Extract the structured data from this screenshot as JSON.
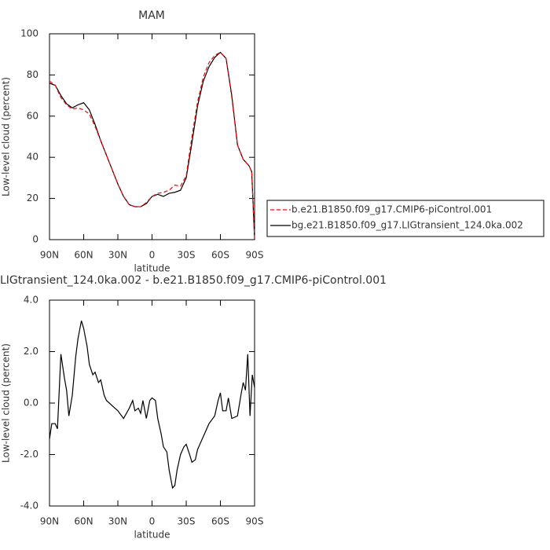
{
  "chart_data": [
    {
      "type": "line",
      "title": "MAM",
      "x_label": "latitude",
      "y_label": "Low-level cloud (percent)",
      "x": [
        90,
        85,
        80,
        75,
        70,
        65,
        60,
        55,
        50,
        45,
        40,
        35,
        30,
        25,
        20,
        15,
        10,
        5,
        0,
        -5,
        -10,
        -15,
        -20,
        -25,
        -30,
        -35,
        -40,
        -45,
        -50,
        -55,
        -60,
        -65,
        -70,
        -75,
        -80,
        -85,
        -87.5,
        -90
      ],
      "series": [
        {
          "name": "b.e21.B1850.f09_g17.CMIP6-piControl.001",
          "color": "#ff0000",
          "line_style": "dashed",
          "values": [
            77,
            75,
            69,
            65.5,
            63.5,
            64,
            63,
            61,
            55,
            48,
            41,
            34,
            27,
            21,
            17,
            16,
            16,
            18,
            21,
            22.5,
            23,
            24,
            26.5,
            26,
            31,
            50,
            67,
            79,
            86,
            89.5,
            91,
            88,
            69,
            46,
            39,
            36,
            33,
            0
          ]
        },
        {
          "name": "bg.e21.B1850.f09_g17.LIGtransient_124.0ka.002",
          "color": "#000000",
          "line_style": "solid",
          "values": [
            76,
            75,
            70,
            66,
            64,
            65.5,
            66.5,
            63,
            56,
            48,
            41,
            34,
            27,
            21,
            17,
            16,
            16,
            17.5,
            21,
            22,
            21,
            22.5,
            23,
            24,
            30,
            47,
            65,
            77,
            84,
            88.5,
            91,
            88,
            70,
            46,
            39,
            36,
            33,
            0
          ]
        }
      ],
      "xlim": [
        90,
        -90
      ],
      "xticks": [
        {
          "value": 90,
          "label": "90N"
        },
        {
          "value": 60,
          "label": "60N"
        },
        {
          "value": 30,
          "label": "30N"
        },
        0,
        {
          "value": -30,
          "label": "30S"
        },
        {
          "value": -60,
          "label": "60S"
        },
        {
          "value": -90,
          "label": "90S"
        }
      ],
      "ylim": [
        0,
        100
      ],
      "yticks": [
        0,
        20,
        40,
        60,
        80,
        100
      ],
      "legend": "right"
    },
    {
      "type": "line",
      "title": "LIGtransient_124.0ka.002 - b.e21.B1850.f09_g17.CMIP6-piControl.001",
      "x_label": "latitude",
      "y_label": "Low-level cloud (percent)",
      "x": [
        90,
        88,
        85,
        83,
        80,
        77,
        75,
        73,
        70,
        67,
        65,
        62,
        60,
        57,
        55,
        52,
        50,
        47,
        45,
        42,
        40,
        35,
        30,
        25,
        20,
        17,
        15,
        12,
        10,
        8,
        5,
        2,
        0,
        -3,
        -5,
        -8,
        -10,
        -13,
        -15,
        -18,
        -20,
        -22,
        -25,
        -28,
        -30,
        -33,
        -35,
        -38,
        -40,
        -45,
        -50,
        -55,
        -58,
        -60,
        -62,
        -65,
        -67,
        -70,
        -75,
        -78,
        -80,
        -82,
        -84,
        -86,
        -88,
        -90
      ],
      "color": "#000000",
      "values": [
        -1.4,
        -0.8,
        -0.8,
        -1.0,
        1.9,
        1.0,
        0.5,
        -0.5,
        0.3,
        1.8,
        2.5,
        3.2,
        2.9,
        2.2,
        1.5,
        1.1,
        1.2,
        0.8,
        0.9,
        0.3,
        0.1,
        -0.1,
        -0.3,
        -0.6,
        -0.2,
        0.1,
        -0.3,
        -0.2,
        -0.4,
        0.1,
        -0.6,
        0.1,
        0.2,
        0.1,
        -0.6,
        -1.2,
        -1.7,
        -1.9,
        -2.6,
        -3.3,
        -3.2,
        -2.6,
        -2.0,
        -1.7,
        -1.6,
        -2.0,
        -2.3,
        -2.2,
        -1.8,
        -1.3,
        -0.8,
        -0.5,
        0.1,
        0.4,
        -0.3,
        -0.3,
        0.2,
        -0.6,
        -0.5,
        0.3,
        0.8,
        0.5,
        1.9,
        -0.5,
        1.1,
        0.6
      ],
      "xlim": [
        90,
        -90
      ],
      "xticks": [
        {
          "value": 90,
          "label": "90N"
        },
        {
          "value": 60,
          "label": "60N"
        },
        {
          "value": 30,
          "label": "30N"
        },
        0,
        {
          "value": -30,
          "label": "30S"
        },
        {
          "value": -60,
          "label": "60S"
        },
        {
          "value": -90,
          "label": "90S"
        }
      ],
      "ylim": [
        -4,
        4
      ],
      "yticks": [
        {
          "value": -4,
          "label": "-4.0"
        },
        {
          "value": -2,
          "label": "-2.0"
        },
        {
          "value": 0,
          "label": "0.0"
        },
        {
          "value": 2,
          "label": "2.0"
        },
        {
          "value": 4,
          "label": "4.0"
        }
      ]
    }
  ]
}
